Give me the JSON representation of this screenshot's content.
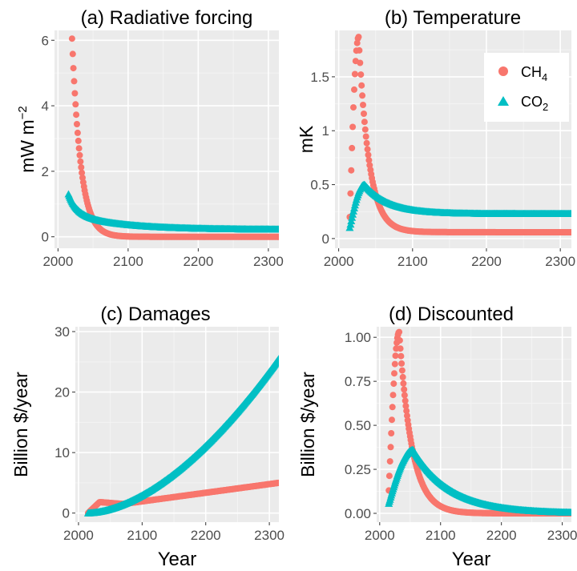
{
  "colors": {
    "ch4": "#F8766D",
    "co2": "#00BFC4",
    "panel_bg": "#EBEBEB",
    "grid_major": "#FFFFFF",
    "grid_minor": "#F4F4F4",
    "tick_text": "#4D4D4D"
  },
  "legend": {
    "placement": "top-right of panel (b)",
    "ch4": {
      "base": "CH",
      "sub": "4",
      "marker": "circle"
    },
    "co2": {
      "base": "CO",
      "sub": "2",
      "marker": "triangle"
    }
  },
  "chart_data": [
    {
      "id": "a",
      "type": "scatter",
      "title": "(a) Radiative forcing",
      "ylabel": {
        "base": "mW m",
        "sup": "−2"
      },
      "xlabel": "",
      "xlim": [
        1995,
        2315
      ],
      "ylim": [
        -0.35,
        6.3
      ],
      "xticks": [
        2000,
        2100,
        2200,
        2300
      ],
      "xtick_labels": [
        "2000",
        "2100",
        "2200",
        "2300"
      ],
      "yticks": [
        0,
        2,
        4,
        6
      ],
      "ytick_labels": [
        "0",
        "2",
        "4",
        "6"
      ],
      "grid": true,
      "series": [
        {
          "key": "ch4",
          "name": "CH4",
          "x_start": 2020,
          "x_end": 2315,
          "step": 1,
          "model": "decay",
          "a": 6.05,
          "tau": 12.4,
          "floor": 0.0
        },
        {
          "key": "co2",
          "name": "CO2",
          "x_start": 2015,
          "x_end": 2315,
          "step": 1,
          "model": "co2rf",
          "a": 1.3,
          "tail": 0.22
        }
      ]
    },
    {
      "id": "b",
      "type": "scatter",
      "title": "(b) Temperature",
      "ylabel": {
        "base": "mK",
        "sup": ""
      },
      "xlabel": "",
      "xlim": [
        1995,
        2315
      ],
      "ylim": [
        -0.09,
        1.93
      ],
      "xticks": [
        2000,
        2100,
        2200,
        2300
      ],
      "xtick_labels": [
        "2000",
        "2100",
        "2200",
        "2300"
      ],
      "yticks": [
        0,
        0.5,
        1,
        1.5
      ],
      "ytick_labels": [
        "0",
        "0.5",
        "1",
        "1.5"
      ],
      "grid": true,
      "series": [
        {
          "key": "ch4",
          "name": "CH4",
          "x_start": 2015,
          "x_end": 2315,
          "step": 1,
          "model": "pulse",
          "peak_x": 2027,
          "peak_y": 1.87,
          "rise": 0.2,
          "tau": 14,
          "floor": 0.06,
          "floor_decay": 0.0001
        },
        {
          "key": "co2",
          "name": "CO2",
          "x_start": 2015,
          "x_end": 2315,
          "step": 1,
          "model": "pulse",
          "peak_x": 2035,
          "peak_y": 0.5,
          "rise": 0.1,
          "tau": 32,
          "floor": 0.23,
          "floor_decay": 0.0
        }
      ]
    },
    {
      "id": "c",
      "type": "scatter",
      "title": "(c) Damages",
      "ylabel": {
        "base": "Billion $/year",
        "sup": ""
      },
      "xlabel": "Year",
      "xlim": [
        1995,
        2315
      ],
      "ylim": [
        -1.5,
        30.8
      ],
      "xticks": [
        2000,
        2100,
        2200,
        2300
      ],
      "xtick_labels": [
        "2000",
        "2100",
        "2200",
        "2300"
      ],
      "yticks": [
        0,
        10,
        20,
        30
      ],
      "ytick_labels": [
        "0",
        "10",
        "20",
        "30"
      ],
      "grid": true,
      "series": [
        {
          "key": "ch4",
          "name": "CH4",
          "x_start": 2015,
          "x_end": 2315,
          "step": 1,
          "model": "damch4",
          "peak_y": 1.8,
          "end_y": 5.0
        },
        {
          "key": "co2",
          "name": "CO2",
          "x_start": 2015,
          "x_end": 2315,
          "step": 1,
          "model": "power",
          "end_y": 25.5,
          "p": 1.72
        }
      ]
    },
    {
      "id": "d",
      "type": "scatter",
      "title": "(d) Discounted",
      "ylabel": {
        "base": "Billion $/year",
        "sup": ""
      },
      "xlabel": "Year",
      "xlim": [
        1995,
        2315
      ],
      "ylim": [
        -0.05,
        1.06
      ],
      "xticks": [
        2000,
        2100,
        2200,
        2300
      ],
      "xtick_labels": [
        "2000",
        "2100",
        "2200",
        "2300"
      ],
      "yticks": [
        0,
        0.25,
        0.5,
        0.75,
        1
      ],
      "ytick_labels": [
        "0.00",
        "0.25",
        "0.50",
        "0.75",
        "1.00"
      ],
      "grid": true,
      "series": [
        {
          "key": "ch4",
          "name": "CH4",
          "x_start": 2015,
          "x_end": 2315,
          "step": 1,
          "model": "pulse",
          "peak_x": 2032,
          "peak_y": 1.03,
          "rise": 0.13,
          "tau": 21,
          "floor": 0.0,
          "floor_decay": 0.0
        },
        {
          "key": "co2",
          "name": "CO2",
          "x_start": 2015,
          "x_end": 2315,
          "step": 1,
          "model": "pulse",
          "peak_x": 2055,
          "peak_y": 0.36,
          "rise": 0.055,
          "tau": 60,
          "floor": 0.0,
          "floor_decay": 0.0
        }
      ]
    }
  ]
}
